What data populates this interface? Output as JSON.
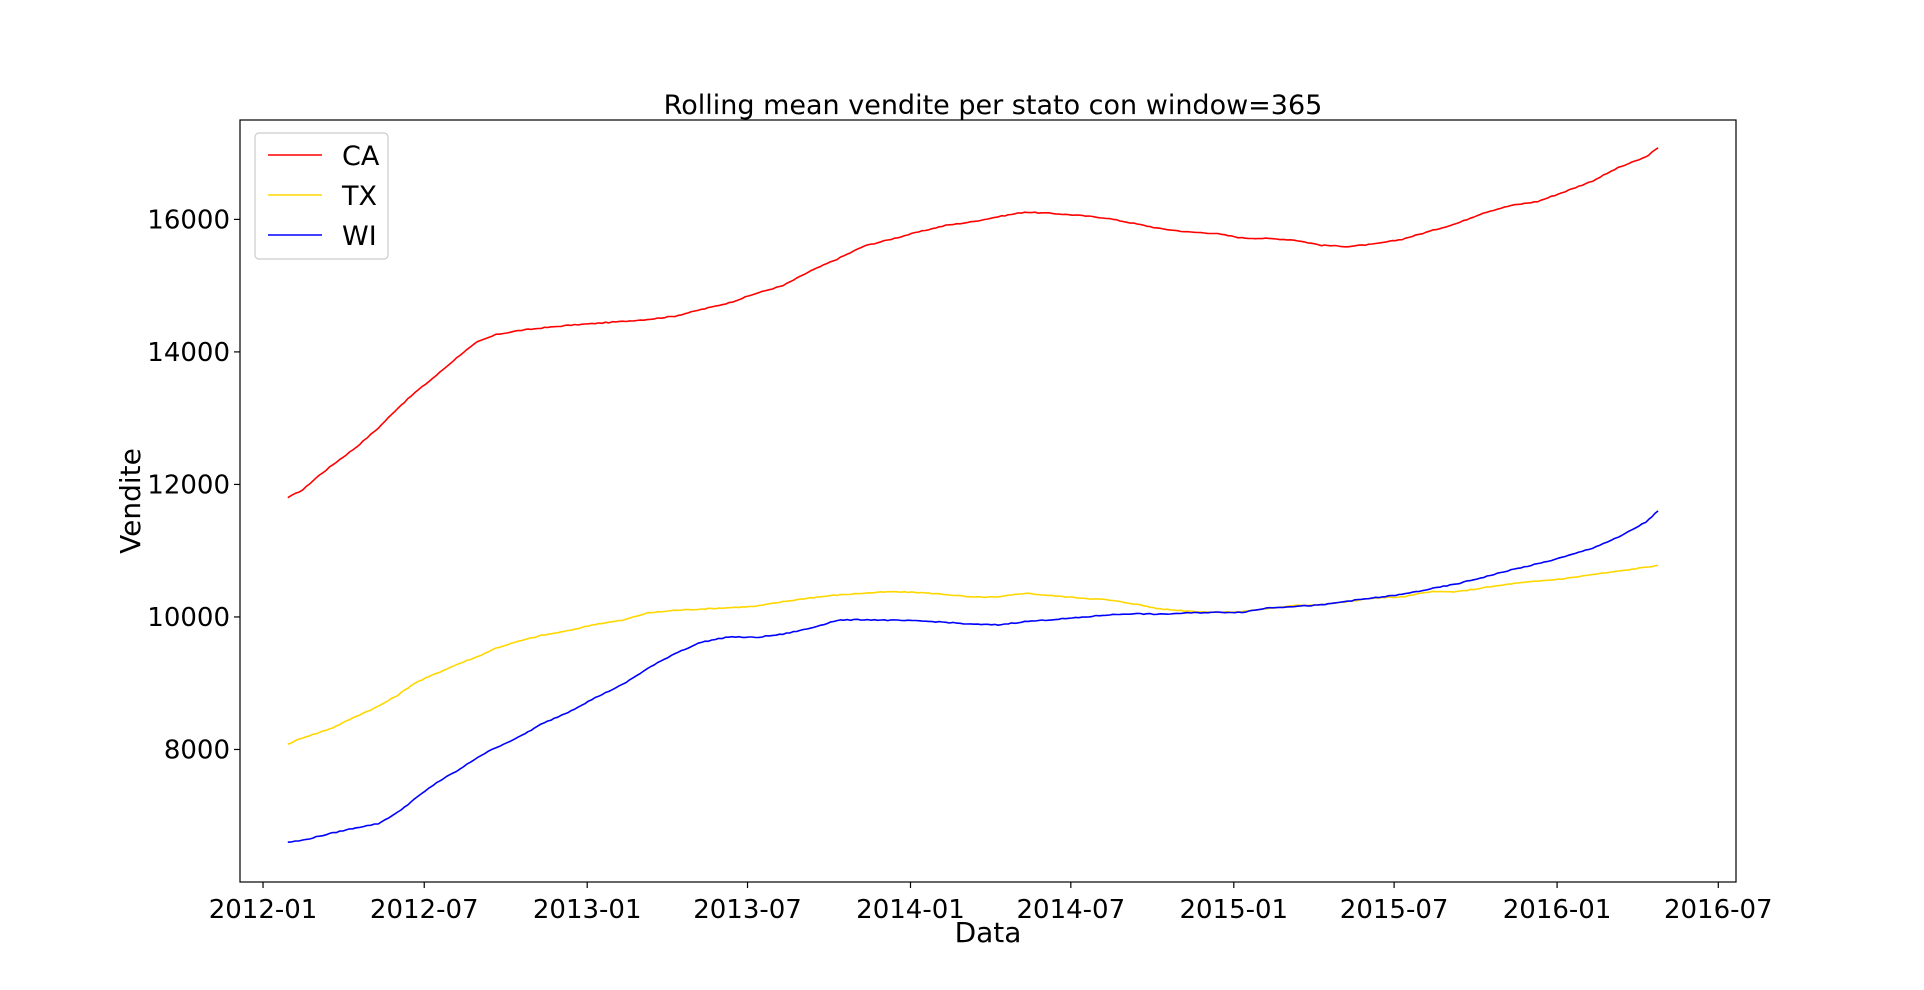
{
  "chart_data": {
    "type": "line",
    "title": "Rolling mean vendite per stato con window=365",
    "xlabel": "Data",
    "ylabel": "Vendite",
    "x_ticks": [
      "2012-01",
      "2012-07",
      "2013-01",
      "2013-07",
      "2014-01",
      "2014-07",
      "2015-01",
      "2015-07",
      "2016-01",
      "2016-07"
    ],
    "y_ticks": [
      "8000",
      "10000",
      "12000",
      "14000",
      "16000"
    ],
    "xlim": [
      "2011-12-06",
      "2016-07-21"
    ],
    "ylim": [
      6000,
      17500
    ],
    "legend_position": "top-left",
    "grid": false,
    "series": [
      {
        "name": "CA",
        "color": "#ff0000",
        "points": [
          [
            "2012-01-29",
            11800
          ],
          [
            "2012-02-15",
            11920
          ],
          [
            "2012-03-01",
            12100
          ],
          [
            "2012-03-20",
            12300
          ],
          [
            "2012-04-15",
            12560
          ],
          [
            "2012-05-10",
            12850
          ],
          [
            "2012-06-01",
            13150
          ],
          [
            "2012-06-20",
            13380
          ],
          [
            "2012-07-15",
            13650
          ],
          [
            "2012-08-10",
            13950
          ],
          [
            "2012-08-30",
            14150
          ],
          [
            "2012-09-20",
            14260
          ],
          [
            "2012-10-15",
            14320
          ],
          [
            "2012-11-10",
            14360
          ],
          [
            "2012-12-10",
            14400
          ],
          [
            "2013-01-10",
            14430
          ],
          [
            "2013-02-10",
            14460
          ],
          [
            "2013-03-10",
            14490
          ],
          [
            "2013-04-10",
            14540
          ],
          [
            "2013-05-10",
            14640
          ],
          [
            "2013-06-10",
            14740
          ],
          [
            "2013-07-10",
            14880
          ],
          [
            "2013-08-10",
            15000
          ],
          [
            "2013-09-10",
            15220
          ],
          [
            "2013-10-10",
            15400
          ],
          [
            "2013-11-10",
            15600
          ],
          [
            "2013-12-10",
            15700
          ],
          [
            "2014-01-10",
            15810
          ],
          [
            "2014-02-10",
            15910
          ],
          [
            "2014-03-10",
            15960
          ],
          [
            "2014-04-10",
            16040
          ],
          [
            "2014-05-10",
            16110
          ],
          [
            "2014-06-10",
            16090
          ],
          [
            "2014-07-10",
            16060
          ],
          [
            "2014-08-10",
            16020
          ],
          [
            "2014-09-10",
            15940
          ],
          [
            "2014-10-10",
            15860
          ],
          [
            "2014-11-10",
            15810
          ],
          [
            "2014-12-10",
            15790
          ],
          [
            "2015-01-10",
            15720
          ],
          [
            "2015-02-10",
            15710
          ],
          [
            "2015-03-10",
            15690
          ],
          [
            "2015-04-10",
            15610
          ],
          [
            "2015-05-10",
            15590
          ],
          [
            "2015-06-10",
            15630
          ],
          [
            "2015-07-10",
            15700
          ],
          [
            "2015-08-10",
            15820
          ],
          [
            "2015-09-10",
            15940
          ],
          [
            "2015-10-10",
            16100
          ],
          [
            "2015-11-10",
            16210
          ],
          [
            "2015-12-10",
            16270
          ],
          [
            "2016-01-10",
            16420
          ],
          [
            "2016-02-10",
            16580
          ],
          [
            "2016-03-10",
            16780
          ],
          [
            "2016-04-10",
            16940
          ],
          [
            "2016-04-24",
            17080
          ]
        ]
      },
      {
        "name": "TX",
        "color": "#ffd700",
        "points": [
          [
            "2012-01-29",
            8080
          ],
          [
            "2012-02-15",
            8180
          ],
          [
            "2012-03-01",
            8240
          ],
          [
            "2012-03-20",
            8330
          ],
          [
            "2012-04-15",
            8500
          ],
          [
            "2012-05-10",
            8650
          ],
          [
            "2012-06-01",
            8820
          ],
          [
            "2012-06-20",
            9000
          ],
          [
            "2012-07-15",
            9150
          ],
          [
            "2012-08-10",
            9300
          ],
          [
            "2012-08-30",
            9400
          ],
          [
            "2012-09-20",
            9530
          ],
          [
            "2012-10-15",
            9630
          ],
          [
            "2012-11-10",
            9720
          ],
          [
            "2012-12-10",
            9790
          ],
          [
            "2013-01-10",
            9890
          ],
          [
            "2013-02-10",
            9950
          ],
          [
            "2013-03-10",
            10060
          ],
          [
            "2013-04-10",
            10100
          ],
          [
            "2013-05-10",
            10120
          ],
          [
            "2013-06-10",
            10140
          ],
          [
            "2013-07-10",
            10160
          ],
          [
            "2013-08-10",
            10230
          ],
          [
            "2013-09-10",
            10290
          ],
          [
            "2013-10-10",
            10330
          ],
          [
            "2013-11-10",
            10360
          ],
          [
            "2013-12-10",
            10380
          ],
          [
            "2014-01-10",
            10370
          ],
          [
            "2014-02-10",
            10340
          ],
          [
            "2014-03-10",
            10300
          ],
          [
            "2014-04-10",
            10300
          ],
          [
            "2014-05-10",
            10360
          ],
          [
            "2014-06-10",
            10320
          ],
          [
            "2014-07-10",
            10290
          ],
          [
            "2014-08-10",
            10260
          ],
          [
            "2014-09-10",
            10200
          ],
          [
            "2014-10-10",
            10120
          ],
          [
            "2014-11-10",
            10090
          ],
          [
            "2014-12-10",
            10070
          ],
          [
            "2015-01-10",
            10080
          ],
          [
            "2015-02-10",
            10130
          ],
          [
            "2015-03-10",
            10170
          ],
          [
            "2015-04-10",
            10190
          ],
          [
            "2015-05-10",
            10230
          ],
          [
            "2015-06-10",
            10290
          ],
          [
            "2015-07-10",
            10300
          ],
          [
            "2015-08-10",
            10380
          ],
          [
            "2015-09-10",
            10380
          ],
          [
            "2015-10-10",
            10440
          ],
          [
            "2015-11-10",
            10500
          ],
          [
            "2015-12-10",
            10540
          ],
          [
            "2016-01-10",
            10580
          ],
          [
            "2016-02-10",
            10640
          ],
          [
            "2016-03-10",
            10690
          ],
          [
            "2016-04-10",
            10750
          ],
          [
            "2016-04-24",
            10780
          ]
        ]
      },
      {
        "name": "WI",
        "color": "#0000ff",
        "points": [
          [
            "2012-01-29",
            6600
          ],
          [
            "2012-02-15",
            6630
          ],
          [
            "2012-03-01",
            6680
          ],
          [
            "2012-03-20",
            6740
          ],
          [
            "2012-04-15",
            6820
          ],
          [
            "2012-05-10",
            6880
          ],
          [
            "2012-06-01",
            7050
          ],
          [
            "2012-06-20",
            7250
          ],
          [
            "2012-07-15",
            7500
          ],
          [
            "2012-08-10",
            7700
          ],
          [
            "2012-08-30",
            7880
          ],
          [
            "2012-09-20",
            8030
          ],
          [
            "2012-10-15",
            8180
          ],
          [
            "2012-11-10",
            8380
          ],
          [
            "2012-12-10",
            8560
          ],
          [
            "2013-01-10",
            8780
          ],
          [
            "2013-02-10",
            8980
          ],
          [
            "2013-03-10",
            9220
          ],
          [
            "2013-04-10",
            9450
          ],
          [
            "2013-05-10",
            9620
          ],
          [
            "2013-06-10",
            9700
          ],
          [
            "2013-07-10",
            9690
          ],
          [
            "2013-08-10",
            9740
          ],
          [
            "2013-09-10",
            9830
          ],
          [
            "2013-10-10",
            9950
          ],
          [
            "2013-11-10",
            9960
          ],
          [
            "2013-12-10",
            9950
          ],
          [
            "2014-01-10",
            9940
          ],
          [
            "2014-02-10",
            9920
          ],
          [
            "2014-03-10",
            9890
          ],
          [
            "2014-04-10",
            9880
          ],
          [
            "2014-05-10",
            9930
          ],
          [
            "2014-06-10",
            9960
          ],
          [
            "2014-07-10",
            9990
          ],
          [
            "2014-08-10",
            10030
          ],
          [
            "2014-09-10",
            10050
          ],
          [
            "2014-10-10",
            10040
          ],
          [
            "2014-11-10",
            10060
          ],
          [
            "2014-12-10",
            10070
          ],
          [
            "2015-01-10",
            10070
          ],
          [
            "2015-02-10",
            10140
          ],
          [
            "2015-03-10",
            10160
          ],
          [
            "2015-04-10",
            10180
          ],
          [
            "2015-05-10",
            10240
          ],
          [
            "2015-06-10",
            10290
          ],
          [
            "2015-07-10",
            10340
          ],
          [
            "2015-08-10",
            10420
          ],
          [
            "2015-09-10",
            10500
          ],
          [
            "2015-10-10",
            10600
          ],
          [
            "2015-11-10",
            10710
          ],
          [
            "2015-12-10",
            10800
          ],
          [
            "2016-01-10",
            10910
          ],
          [
            "2016-02-10",
            11040
          ],
          [
            "2016-03-10",
            11200
          ],
          [
            "2016-04-10",
            11430
          ],
          [
            "2016-04-24",
            11600
          ]
        ]
      }
    ]
  }
}
